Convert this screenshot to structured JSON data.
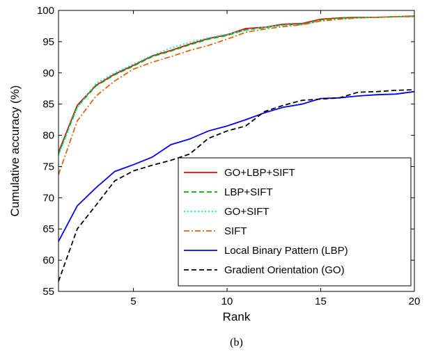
{
  "caption": "(b)",
  "chart_data": {
    "type": "line",
    "xlabel": "Rank",
    "ylabel": "Cumulative accuracy (%)",
    "xlim": [
      1,
      20
    ],
    "ylim": [
      55,
      100
    ],
    "xticks": [
      5,
      10,
      15,
      20
    ],
    "yticks": [
      55,
      60,
      65,
      70,
      75,
      80,
      85,
      90,
      95,
      100
    ],
    "grid": false,
    "legend_position": "bottom-right",
    "x": [
      1,
      2,
      3,
      4,
      5,
      6,
      7,
      8,
      9,
      10,
      11,
      12,
      13,
      14,
      15,
      16,
      17,
      18,
      19,
      20
    ],
    "series": [
      {
        "name": "GO+LBP+SIFT",
        "color": "#ff0000",
        "dash": "solid",
        "values": [
          77.3,
          84.8,
          88.0,
          89.8,
          91.2,
          92.7,
          93.6,
          94.6,
          95.5,
          96.1,
          97.1,
          97.3,
          97.8,
          97.9,
          98.6,
          98.8,
          98.9,
          98.9,
          99.0,
          99.1
        ]
      },
      {
        "name": "LBP+SIFT",
        "color": "#00aa00",
        "dash": "dashed",
        "values": [
          77.0,
          84.6,
          87.9,
          89.7,
          91.1,
          92.6,
          93.5,
          94.5,
          95.4,
          96.0,
          96.9,
          97.2,
          97.7,
          97.8,
          98.5,
          98.8,
          98.9,
          98.9,
          99.0,
          99.1
        ]
      },
      {
        "name": "GO+SIFT",
        "color": "#00e5e5",
        "dash": "dotted",
        "values": [
          76.8,
          84.4,
          88.3,
          90.0,
          91.4,
          92.8,
          94.0,
          94.9,
          95.6,
          96.2,
          96.8,
          97.3,
          97.6,
          97.7,
          98.3,
          98.6,
          98.8,
          98.9,
          99.0,
          99.0
        ]
      },
      {
        "name": "SIFT",
        "color": "#dd6611",
        "dash": "dashdot",
        "values": [
          73.7,
          82.3,
          86.3,
          88.7,
          90.6,
          91.7,
          92.6,
          93.6,
          94.4,
          95.4,
          96.5,
          97.0,
          97.4,
          97.7,
          98.3,
          98.6,
          98.8,
          98.9,
          99.0,
          99.0
        ]
      },
      {
        "name": "Local Binary Pattern (LBP)",
        "color": "#0000ff",
        "dash": "solid",
        "values": [
          63.0,
          68.7,
          71.6,
          74.2,
          75.3,
          76.5,
          78.5,
          79.4,
          80.7,
          81.5,
          82.5,
          83.6,
          84.5,
          85.0,
          85.9,
          86.0,
          86.3,
          86.5,
          86.6,
          87.0
        ]
      },
      {
        "name": "Gradient Orientation (GO)",
        "color": "#000000",
        "dash": "dashed",
        "values": [
          56.6,
          65.0,
          68.8,
          72.7,
          74.3,
          75.2,
          76.0,
          77.0,
          79.5,
          80.7,
          81.5,
          83.8,
          84.8,
          85.6,
          85.8,
          86.0,
          86.9,
          87.0,
          87.2,
          87.3
        ]
      }
    ]
  }
}
